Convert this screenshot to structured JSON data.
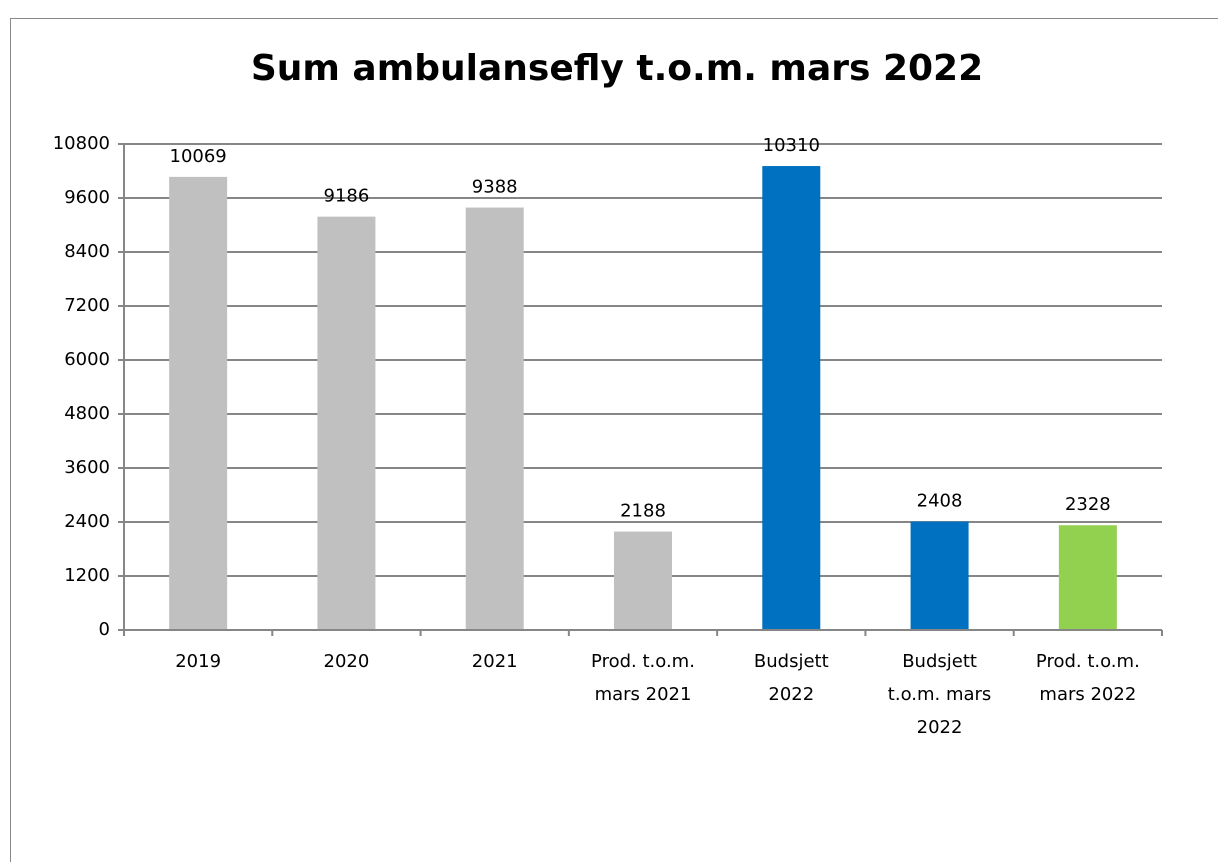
{
  "chart_data": {
    "type": "bar",
    "title": "Sum ambulansefly t.o.m. mars 2022",
    "categories": [
      "2019",
      "2020",
      "2021",
      "Prod. t.o.m. mars 2021",
      "Budsjett 2022",
      "Budsjett t.o.m. mars 2022",
      "Prod. t.o.m. mars 2022"
    ],
    "values": [
      10069,
      9186,
      9388,
      2188,
      10310,
      2408,
      2328
    ],
    "colors": [
      "#c0c0c0",
      "#c0c0c0",
      "#c0c0c0",
      "#c0c0c0",
      "#0070c0",
      "#0070c0",
      "#92d050"
    ],
    "ylim": [
      0,
      10800
    ],
    "yticks": [
      0,
      1200,
      2400,
      3600,
      4800,
      6000,
      7200,
      8400,
      9600,
      10800
    ],
    "grid": true
  }
}
